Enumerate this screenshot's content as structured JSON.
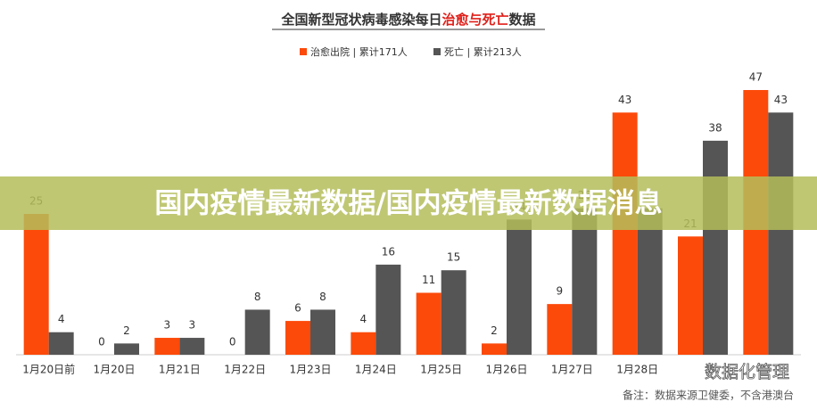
{
  "chart_data": {
    "type": "bar",
    "title_parts": [
      "全国新型冠状病毒感染每日",
      "治愈与死亡",
      "数据"
    ],
    "categories": [
      "1月20日前",
      "1月20日",
      "1月21日",
      "1月22日",
      "1月23日",
      "1月24日",
      "1月25日",
      "1月26日",
      "1月27日",
      "1月28日",
      null,
      null
    ],
    "series": [
      {
        "name": "治愈出院 | 累计171人",
        "color": "#fc4a0a",
        "values": [
          25,
          0,
          3,
          0,
          6,
          4,
          11,
          2,
          9,
          43,
          21,
          47
        ]
      },
      {
        "name": "死亡 | 累计213人",
        "color": "#555555",
        "values": [
          4,
          2,
          3,
          8,
          8,
          16,
          15,
          24,
          26,
          26,
          38,
          43
        ]
      }
    ],
    "note": "备注：数据来源卫健委，不含港澳台",
    "watermark": "数据化管理",
    "banner": "国内疫情最新数据/国内疫情最新数据消息"
  }
}
